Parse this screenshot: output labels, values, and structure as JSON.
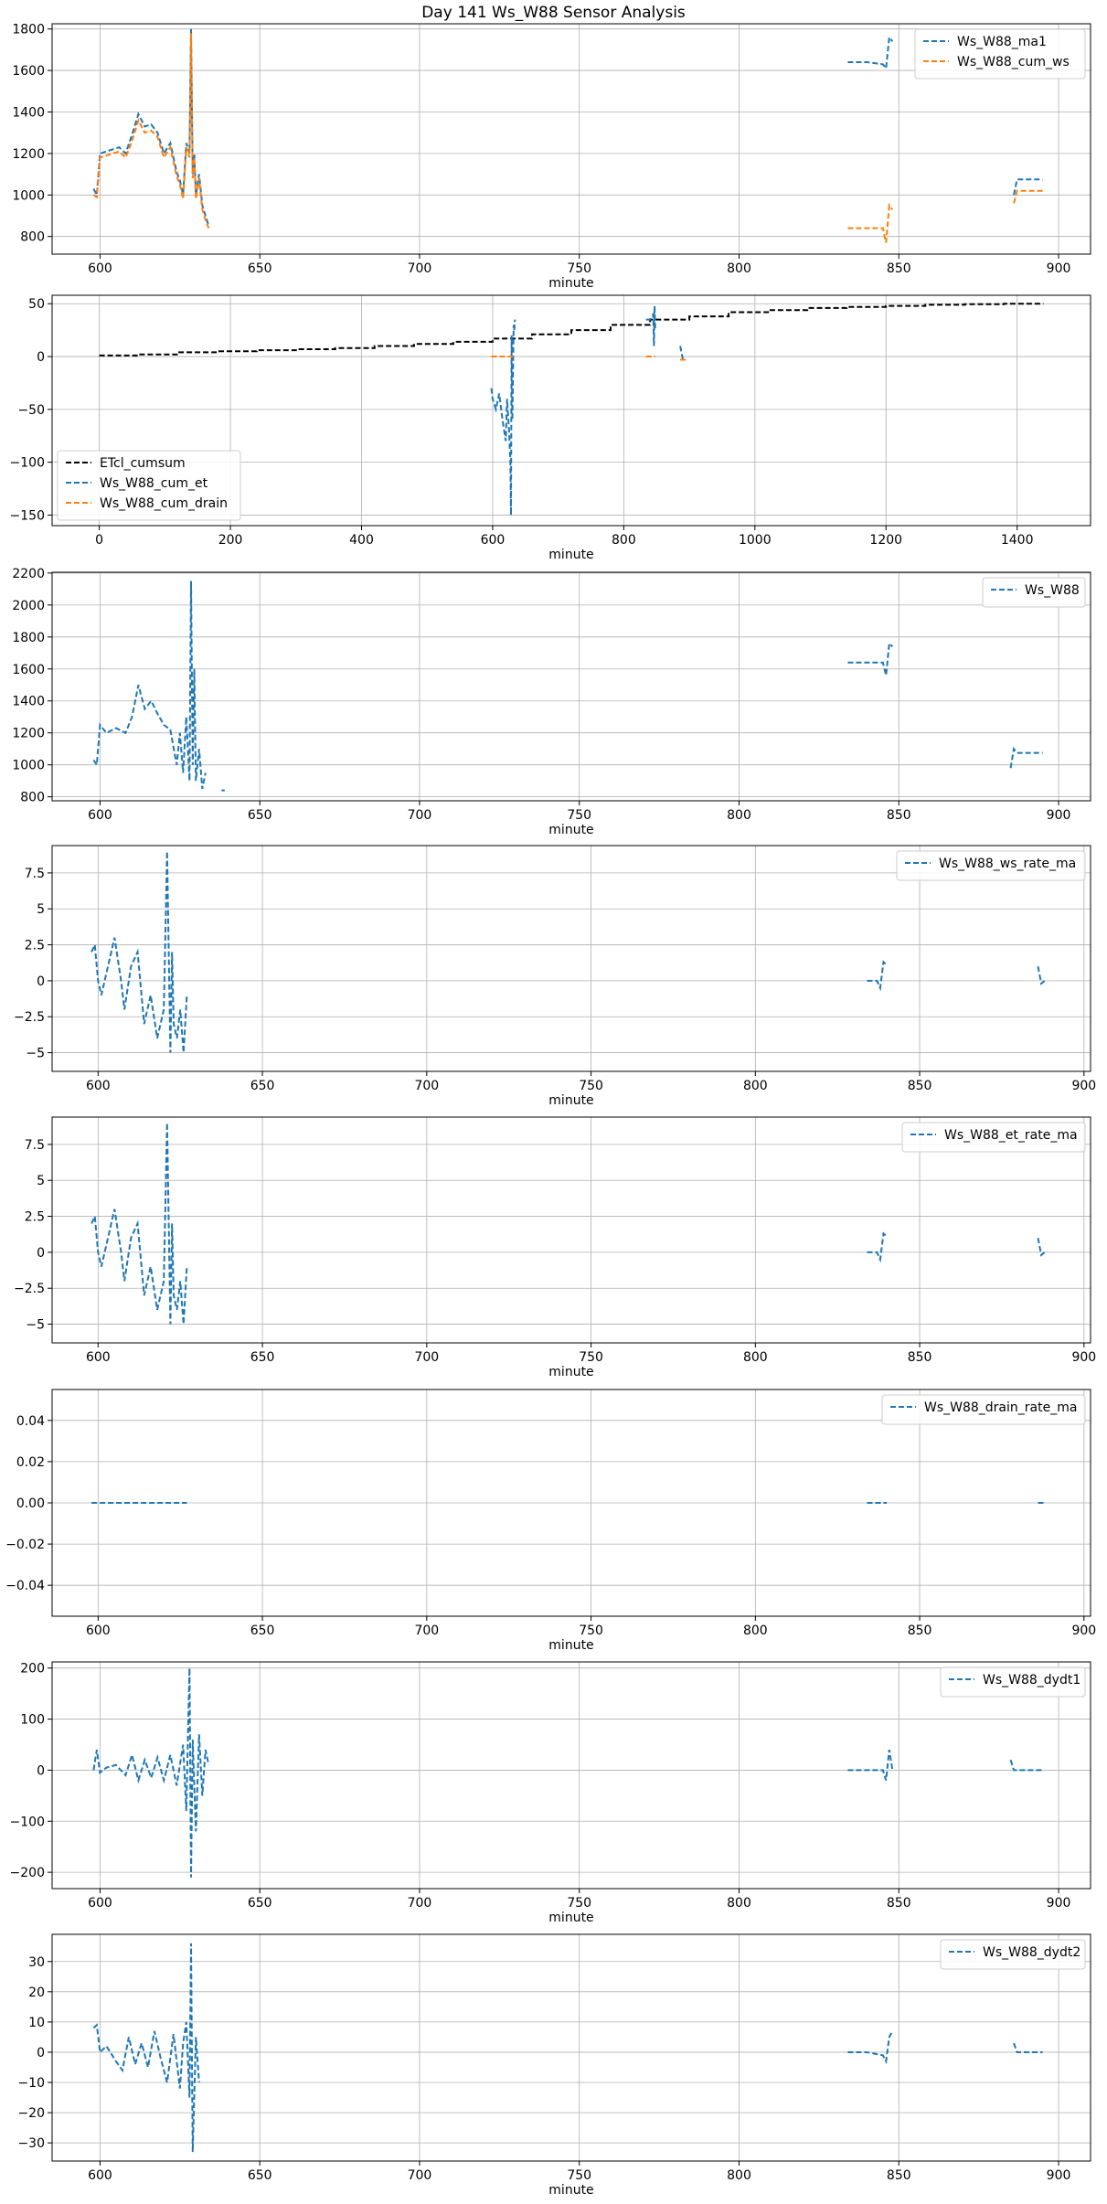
{
  "figure": {
    "title": "Day 141 Ws_W88 Sensor Analysis"
  },
  "colors": {
    "blue": "#1f77b4",
    "orange": "#ff7f0e",
    "black": "#000000",
    "grid": "#b0b0b0"
  },
  "chart_data": [
    {
      "type": "line",
      "xlabel": "minute",
      "ylabel": "",
      "grid": true,
      "legend": "top-right",
      "xlim": [
        585,
        910
      ],
      "ylim": [
        715,
        1825
      ],
      "xticks": [
        600,
        650,
        700,
        750,
        800,
        850,
        900
      ],
      "yticks": [
        800,
        1000,
        1200,
        1400,
        1600,
        1800
      ],
      "series": [
        {
          "name": "Ws_W88_ma1",
          "color": "#1f77b4",
          "dash": true,
          "x": [
            598,
            599,
            600,
            603,
            606,
            608,
            610,
            612,
            614,
            616,
            618,
            620,
            622,
            624,
            625,
            626,
            627,
            628,
            628.5,
            629,
            629.5,
            630,
            631,
            632,
            633,
            634,
            null,
            834,
            840,
            845,
            846,
            847,
            848,
            null,
            886,
            887,
            888,
            895
          ],
          "y": [
            1030,
            1000,
            1200,
            1215,
            1230,
            1200,
            1290,
            1390,
            1330,
            1340,
            1300,
            1200,
            1250,
            1110,
            1070,
            1000,
            1250,
            1200,
            1800,
            1100,
            1200,
            1000,
            1100,
            950,
            900,
            850,
            null,
            1640,
            1640,
            1630,
            1610,
            1760,
            1740,
            null,
            1000,
            1075,
            1075,
            1075
          ]
        },
        {
          "name": "Ws_W88_cum_ws",
          "color": "#ff7f0e",
          "dash": true,
          "x": [
            598,
            599,
            600,
            603,
            606,
            608,
            610,
            612,
            614,
            616,
            618,
            620,
            622,
            624,
            625,
            626,
            627,
            628,
            628.5,
            629,
            629.5,
            630,
            631,
            632,
            633,
            634,
            null,
            834,
            840,
            845,
            846,
            847,
            848,
            null,
            886,
            887,
            888,
            895
          ],
          "y": [
            1000,
            990,
            1180,
            1195,
            1210,
            1180,
            1260,
            1360,
            1300,
            1310,
            1280,
            1180,
            1230,
            1090,
            1050,
            980,
            1230,
            1180,
            1780,
            1080,
            1180,
            980,
            1080,
            930,
            880,
            840,
            null,
            840,
            840,
            840,
            770,
            950,
            930,
            null,
            960,
            1020,
            1020,
            1020
          ]
        }
      ]
    },
    {
      "type": "line",
      "xlabel": "minute",
      "ylabel": "",
      "grid": true,
      "legend": "bottom-left",
      "xlim": [
        -72,
        1512
      ],
      "ylim": [
        -160,
        58
      ],
      "xticks": [
        0,
        200,
        400,
        600,
        800,
        1000,
        1200,
        1400
      ],
      "yticks": [
        50,
        0,
        -50,
        -100,
        -150
      ],
      "series": [
        {
          "name": "ETcl_cumsum",
          "color": "#000000",
          "dash": true,
          "step": true,
          "x": [
            0,
            60,
            120,
            180,
            240,
            300,
            360,
            420,
            480,
            540,
            600,
            660,
            720,
            780,
            840,
            900,
            960,
            1020,
            1080,
            1140,
            1200,
            1260,
            1320,
            1380,
            1440
          ],
          "y": [
            1,
            2,
            4,
            5,
            6,
            7,
            8,
            10,
            12,
            14,
            17,
            21,
            25,
            30,
            35,
            38,
            42,
            44,
            46,
            47,
            48,
            49,
            49.5,
            50,
            50
          ]
        },
        {
          "name": "Ws_W88_cum_et",
          "color": "#1f77b4",
          "dash": true,
          "x": [
            598,
            600,
            605,
            610,
            615,
            620,
            622,
            625,
            627,
            628,
            629,
            630,
            632,
            633,
            634,
            null,
            834,
            840,
            845,
            846,
            847,
            848,
            null,
            886,
            890,
            895
          ],
          "y": [
            -30,
            -40,
            -50,
            -35,
            -60,
            -80,
            -40,
            -70,
            -100,
            -150,
            20,
            -60,
            30,
            25,
            35,
            null,
            35,
            35,
            40,
            10,
            48,
            25,
            null,
            10,
            -2,
            -2
          ]
        },
        {
          "name": "Ws_W88_cum_drain",
          "color": "#ff7f0e",
          "dash": true,
          "x": [
            598,
            634,
            null,
            834,
            848,
            null,
            886,
            895
          ],
          "y": [
            0,
            0,
            null,
            0,
            0,
            null,
            -3,
            -3
          ]
        }
      ]
    },
    {
      "type": "line",
      "xlabel": "minute",
      "ylabel": "",
      "grid": true,
      "legend": "top-right",
      "xlim": [
        585,
        910
      ],
      "ylim": [
        775,
        2205
      ],
      "xticks": [
        600,
        650,
        700,
        750,
        800,
        850,
        900
      ],
      "yticks": [
        800,
        1000,
        1200,
        1400,
        1600,
        1800,
        2000,
        2200
      ],
      "series": [
        {
          "name": "Ws_W88",
          "color": "#1f77b4",
          "dash": true,
          "x": [
            598,
            599,
            600,
            602,
            605,
            608,
            610,
            612,
            614,
            616,
            618,
            620,
            622,
            624,
            625,
            626,
            627,
            628,
            628.5,
            629,
            629.5,
            630,
            631,
            632,
            633,
            null,
            638,
            639,
            null,
            834,
            840,
            845,
            846,
            847,
            848,
            null,
            885,
            886,
            887,
            895
          ],
          "y": [
            1030,
            1000,
            1250,
            1200,
            1230,
            1200,
            1300,
            1500,
            1350,
            1400,
            1320,
            1250,
            1220,
            1000,
            1200,
            950,
            1300,
            900,
            2150,
            1000,
            1600,
            900,
            1100,
            850,
            950,
            null,
            840,
            840,
            null,
            1640,
            1640,
            1640,
            1560,
            1760,
            1740,
            null,
            980,
            1100,
            1075,
            1075
          ]
        }
      ]
    },
    {
      "type": "line",
      "xlabel": "minute",
      "ylabel": "",
      "grid": true,
      "legend": "top-right",
      "xlim": [
        586,
        902
      ],
      "ylim": [
        -6.3,
        9.4
      ],
      "xticks": [
        600,
        650,
        700,
        750,
        800,
        850,
        900
      ],
      "yticks": [
        -5.0,
        -2.5,
        0.0,
        2.5,
        5.0,
        7.5
      ],
      "series": [
        {
          "name": "Ws_W88_ws_rate_ma",
          "color": "#1f77b4",
          "dash": true,
          "x": [
            598,
            599,
            600,
            601,
            603,
            605,
            607,
            608,
            610,
            612,
            614,
            616,
            618,
            620,
            621,
            622,
            622.5,
            623,
            624,
            625,
            626,
            627,
            null,
            834,
            837,
            838,
            839,
            840,
            null,
            886,
            887,
            888
          ],
          "y": [
            2,
            2.5,
            0,
            -1,
            1,
            3,
            0,
            -2,
            1,
            2,
            -3,
            -1,
            -4,
            -2,
            9,
            -5,
            2,
            -3,
            -4,
            -2,
            -5,
            -1,
            null,
            0,
            0,
            -0.5,
            1.3,
            1.1,
            null,
            1,
            -0.2,
            0
          ]
        }
      ]
    },
    {
      "type": "line",
      "xlabel": "minute",
      "ylabel": "",
      "grid": true,
      "legend": "top-right",
      "xlim": [
        586,
        902
      ],
      "ylim": [
        -6.3,
        9.4
      ],
      "xticks": [
        600,
        650,
        700,
        750,
        800,
        850,
        900
      ],
      "yticks": [
        -5.0,
        -2.5,
        0.0,
        2.5,
        5.0,
        7.5
      ],
      "series": [
        {
          "name": "Ws_W88_et_rate_ma",
          "color": "#1f77b4",
          "dash": true,
          "x": [
            598,
            599,
            600,
            601,
            603,
            605,
            607,
            608,
            610,
            612,
            614,
            616,
            618,
            620,
            621,
            622,
            622.5,
            623,
            624,
            625,
            626,
            627,
            null,
            834,
            837,
            838,
            839,
            840,
            null,
            886,
            887,
            888
          ],
          "y": [
            2,
            2.5,
            0,
            -1,
            1,
            3,
            0,
            -2,
            1,
            2,
            -3,
            -1,
            -4,
            -2,
            9,
            -5,
            2,
            -3,
            -4,
            -2,
            -5,
            -1,
            null,
            0,
            0,
            -0.5,
            1.3,
            1.1,
            null,
            1,
            -0.2,
            0
          ]
        }
      ]
    },
    {
      "type": "line",
      "xlabel": "minute",
      "ylabel": "",
      "grid": true,
      "legend": "top-right",
      "xlim": [
        586,
        902
      ],
      "ylim": [
        -0.055,
        0.055
      ],
      "xticks": [
        600,
        650,
        700,
        750,
        800,
        850,
        900
      ],
      "yticks": [
        0.04,
        0.02,
        0.0,
        -0.02,
        -0.04
      ],
      "ytick_labels": [
        "0.04",
        "0.02",
        "0.00",
        "−0.02",
        "−0.04"
      ],
      "series": [
        {
          "name": "Ws_W88_drain_rate_ma",
          "color": "#1f77b4",
          "dash": true,
          "x": [
            598,
            627,
            null,
            834,
            840,
            null,
            886,
            888
          ],
          "y": [
            0,
            0,
            null,
            0,
            0,
            null,
            0,
            0
          ]
        }
      ]
    },
    {
      "type": "line",
      "xlabel": "minute",
      "ylabel": "",
      "grid": true,
      "legend": "top-right",
      "xlim": [
        585,
        910
      ],
      "ylim": [
        -232,
        212
      ],
      "xticks": [
        600,
        650,
        700,
        750,
        800,
        850,
        900
      ],
      "yticks": [
        200,
        100,
        0,
        -100,
        -200
      ],
      "series": [
        {
          "name": "Ws_W88_dydt1",
          "color": "#1f77b4",
          "dash": true,
          "x": [
            598,
            599,
            600,
            602,
            605,
            608,
            610,
            612,
            614,
            616,
            618,
            620,
            622,
            624,
            626,
            627,
            628,
            628.5,
            629,
            630,
            631,
            632,
            633,
            634,
            null,
            834,
            840,
            845,
            846,
            847,
            848,
            null,
            885,
            886,
            887,
            895
          ],
          "y": [
            0,
            40,
            -5,
            5,
            10,
            -10,
            30,
            -20,
            20,
            -15,
            25,
            -20,
            30,
            -30,
            50,
            -80,
            200,
            -210,
            60,
            -120,
            70,
            -50,
            40,
            10,
            null,
            0,
            0,
            0,
            -20,
            40,
            0,
            null,
            20,
            0,
            0,
            0
          ]
        }
      ]
    },
    {
      "type": "line",
      "xlabel": "minute",
      "ylabel": "",
      "grid": true,
      "legend": "top-right",
      "xlim": [
        585,
        910
      ],
      "ylim": [
        -36,
        39
      ],
      "xticks": [
        600,
        650,
        700,
        750,
        800,
        850,
        900
      ],
      "yticks": [
        30,
        20,
        10,
        0,
        -10,
        -20,
        -30
      ],
      "series": [
        {
          "name": "Ws_W88_dydt2",
          "color": "#1f77b4",
          "dash": true,
          "x": [
            598,
            599,
            600,
            602,
            605,
            607,
            609,
            611,
            613,
            615,
            617,
            619,
            621,
            623,
            625,
            626,
            627,
            628,
            628.5,
            629,
            630,
            631,
            null,
            834,
            840,
            845,
            846,
            847,
            848,
            null,
            886,
            887,
            888,
            895
          ],
          "y": [
            8,
            9,
            0,
            2,
            -3,
            -6,
            5,
            -4,
            3,
            -5,
            7,
            -2,
            -10,
            6,
            -12,
            3,
            10,
            -15,
            36,
            -33,
            5,
            -10,
            null,
            0,
            0,
            -1,
            -3,
            5,
            7,
            null,
            3,
            0,
            0,
            0
          ]
        }
      ]
    }
  ]
}
